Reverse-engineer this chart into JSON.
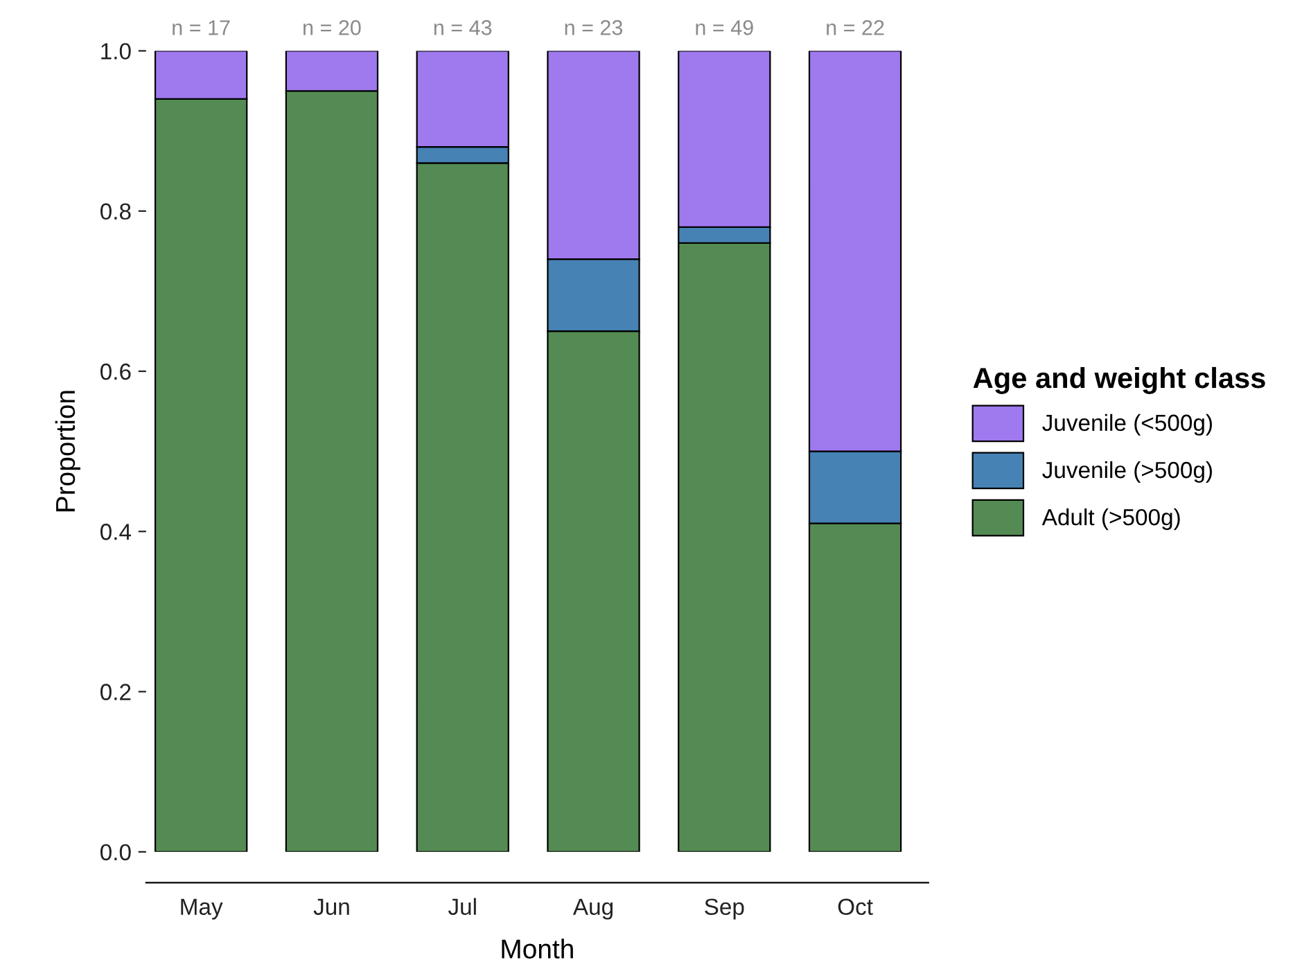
{
  "chart_data": {
    "type": "bar",
    "stacked": true,
    "xlabel": "Month",
    "ylabel": "Proportion",
    "legend_title": "Age and weight class",
    "legend": "right",
    "categories": [
      "May",
      "Jun",
      "Jul",
      "Aug",
      "Sep",
      "Oct"
    ],
    "series": [
      {
        "name": "Adult (>500g)",
        "color": "#548b54",
        "values": [
          0.94,
          0.95,
          0.86,
          0.65,
          0.76,
          0.41
        ]
      },
      {
        "name": "Juvenile (>500g)",
        "color": "#4682b4",
        "values": [
          0,
          0,
          0.02,
          0.09,
          0.02,
          0.09
        ]
      },
      {
        "name": "Juvenile (<500g)",
        "color": "#9f79ee",
        "values": [
          0.06,
          0.05,
          0.12,
          0.26,
          0.22,
          0.5
        ]
      }
    ],
    "ylim": [
      0,
      1
    ],
    "yticks": [
      {
        "value": 0,
        "label": "0.0"
      },
      0.2,
      0.4,
      0.6,
      0.8,
      {
        "value": 1,
        "label": "1.0"
      }
    ],
    "grid": false,
    "annotations": [
      {
        "text": "n = 17",
        "x": "May",
        "y": 1
      },
      {
        "text": "n = 20",
        "x": "Jun",
        "y": 1
      },
      {
        "text": "n = 43",
        "x": "Jul",
        "y": 1
      },
      {
        "text": "n = 23",
        "x": "Aug",
        "y": 1
      },
      {
        "text": "n = 49",
        "x": "Sep",
        "y": 1
      },
      {
        "text": "n = 22",
        "x": "Oct",
        "y": 1
      }
    ]
  }
}
